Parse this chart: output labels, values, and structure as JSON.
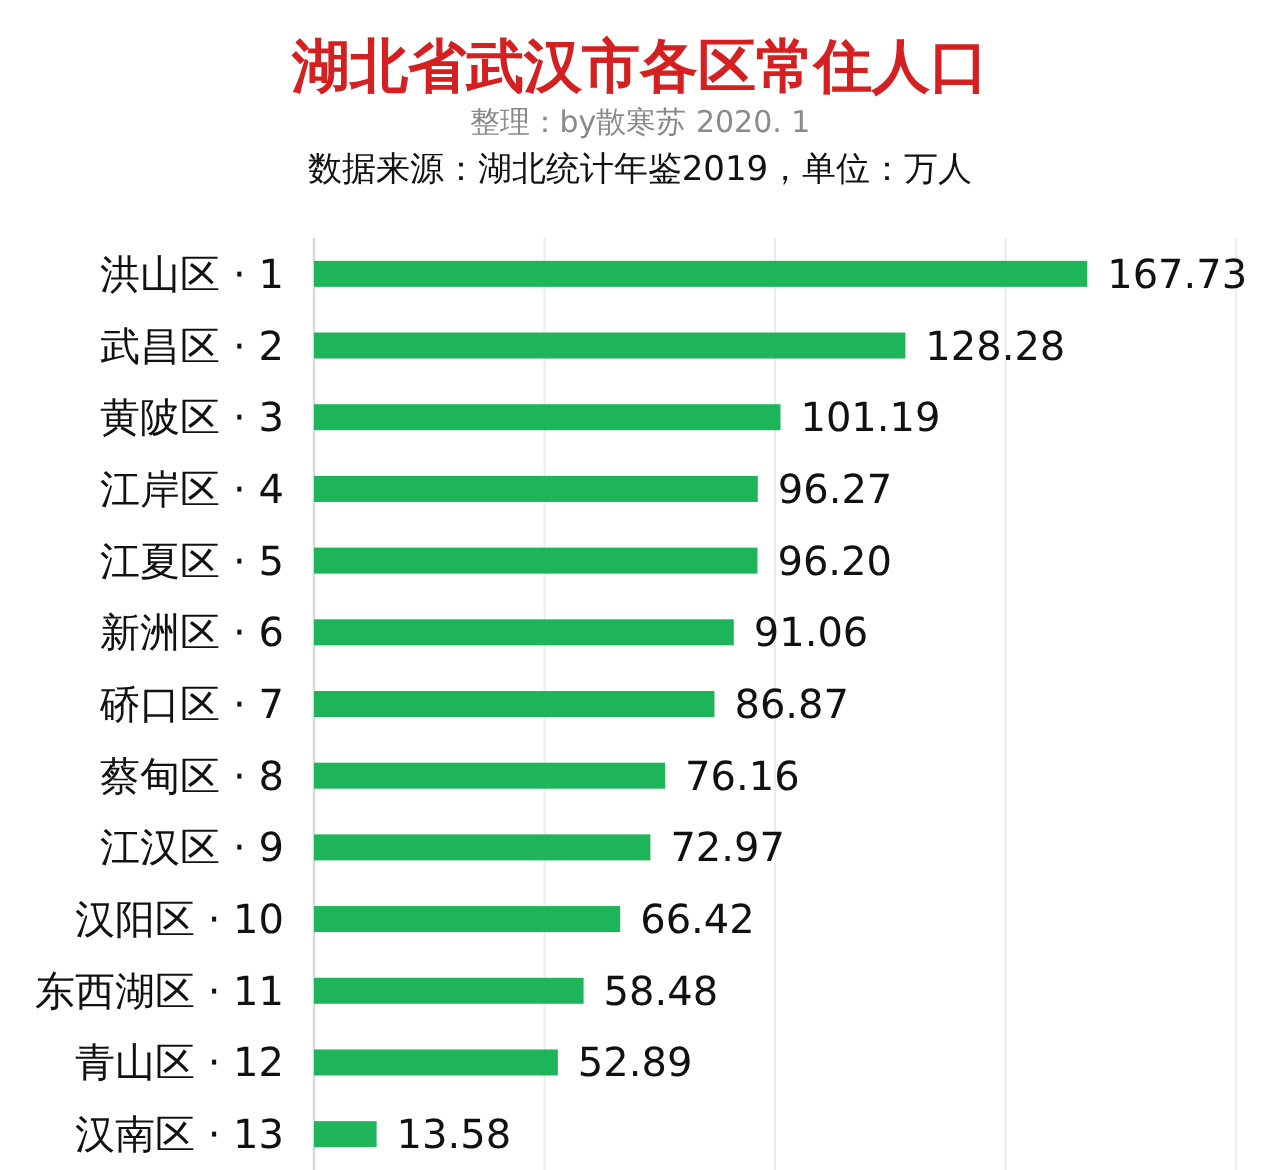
{
  "chart_data": {
    "type": "bar",
    "orientation": "horizontal",
    "title": "湖北省武汉市各区常住人口",
    "subtitle": "整理：by散寒苏 2020. 1",
    "annotations": [
      "数据来源：湖北统计年鉴2019，单位：万人"
    ],
    "categories": [
      "洪山区 · 1",
      "武昌区 · 2",
      "黄陂区 · 3",
      "江岸区 · 4",
      "江夏区 · 5",
      "新洲区 · 6",
      "硚口区 · 7",
      "蔡甸区 · 8",
      "江汉区 · 9",
      "汉阳区 · 10",
      "东西湖区 · 11",
      "青山区 · 12",
      "汉南区 · 13"
    ],
    "values": [
      167.73,
      128.28,
      101.19,
      96.27,
      96.2,
      91.06,
      86.87,
      76.16,
      72.97,
      66.42,
      58.48,
      52.89,
      13.58
    ],
    "value_labels": [
      "167.73",
      "128.28",
      "101.19",
      "96.27",
      "96.20",
      "91.06",
      "86.87",
      "76.16",
      "72.97",
      "66.42",
      "58.48",
      "52.89",
      "13.58"
    ],
    "color": "#1db45a",
    "xlim": [
      0,
      200
    ],
    "xticks": [
      {
        "value": 0,
        "label": null
      },
      {
        "value": 50,
        "label": null
      },
      {
        "value": 100,
        "label": null
      },
      {
        "value": 150,
        "label": null
      },
      {
        "value": 200,
        "label": null
      }
    ],
    "grid": "x",
    "tick_labels": "y"
  }
}
